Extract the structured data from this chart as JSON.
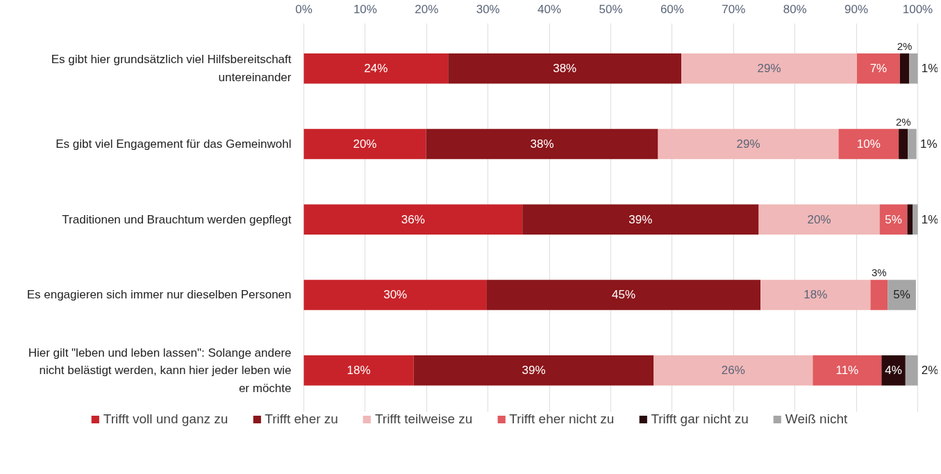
{
  "chart_data": {
    "type": "bar",
    "orientation": "horizontal",
    "stacked": true,
    "categories": [
      "Es gibt hier grundsätzlich viel Hilfsbereitschaft untereinander",
      "Es gibt viel Engagement für das Gemeinwohl",
      "Traditionen und Brauchtum werden gepflegt",
      "Es engagieren sich immer nur dieselben Personen",
      "Hier gilt \"leben und leben lassen\": Solange andere nicht belästigt werden, kann hier jeder leben wie er möchte"
    ],
    "series": [
      {
        "name": "Trifft voll und ganz zu",
        "color": "#c8232a",
        "values": [
          23.5,
          19.9,
          35.6,
          29.8,
          17.9
        ],
        "value_labels": [
          "24%",
          "20%",
          "36%",
          "30%",
          "18%"
        ]
      },
      {
        "name": "Trifft eher zu",
        "color": "#8b161b",
        "values": [
          38.0,
          37.8,
          38.5,
          44.6,
          39.1
        ],
        "value_labels": [
          "38%",
          "38%",
          "39%",
          "45%",
          "39%"
        ]
      },
      {
        "name": "Trifft teilweise zu",
        "color": "#f0b8b8",
        "values": [
          28.6,
          29.4,
          19.7,
          17.9,
          25.9
        ],
        "value_labels": [
          "29%",
          "29%",
          "20%",
          "18%",
          "26%"
        ]
      },
      {
        "name": "Trifft eher nicht zu",
        "color": "#e05a5f",
        "values": [
          7.0,
          9.8,
          4.5,
          2.8,
          11.2
        ],
        "value_labels": [
          "7%",
          "10%",
          "5%",
          "3%",
          "11%"
        ]
      },
      {
        "name": "Trifft gar nicht zu",
        "color": "#2a0a0c",
        "values": [
          1.5,
          1.5,
          0.9,
          null,
          3.9
        ],
        "value_labels": [
          "2%",
          "2%",
          null,
          null,
          "4%"
        ]
      },
      {
        "name": "Weiß nicht",
        "color": "#a6a6a6",
        "values": [
          1.4,
          1.4,
          0.8,
          4.6,
          2.0
        ],
        "value_labels": [
          "1%",
          "1%",
          "1%",
          "5%",
          "2%"
        ]
      }
    ],
    "xlim": [
      0,
      100
    ],
    "xticks": [
      {
        "value": 0,
        "label": "0%"
      },
      {
        "value": 10,
        "label": "10%"
      },
      {
        "value": 20,
        "label": "20%"
      },
      {
        "value": 30,
        "label": "30%"
      },
      {
        "value": 40,
        "label": "40%"
      },
      {
        "value": 50,
        "label": "50%"
      },
      {
        "value": 60,
        "label": "60%"
      },
      {
        "value": 70,
        "label": "70%"
      },
      {
        "value": 80,
        "label": "80%"
      },
      {
        "value": 90,
        "label": "90%"
      },
      {
        "value": 100,
        "label": "100%"
      }
    ],
    "grid": "x",
    "legend": "bottom"
  }
}
